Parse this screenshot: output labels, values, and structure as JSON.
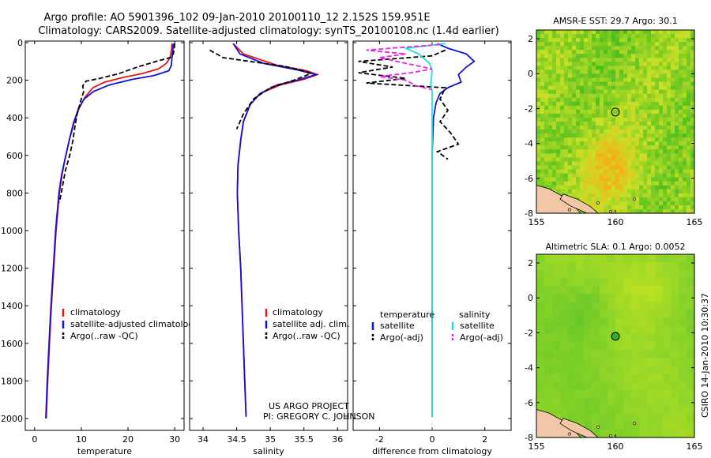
{
  "header": {
    "line1": "Argo profile: AO 5901396_102 09-Jan-2010 20100110_12 2.152S 159.951E",
    "line2": "Climatology: CARS2009. Satellite-adjusted climatology: synTS_20100108.nc (1.4d earlier)"
  },
  "colors": {
    "climatology": "#ee1111",
    "satellite": "#1111dd",
    "argo": "#000000",
    "salinity_satellite": "#22dddd",
    "salinity_argo": "#ee22ee"
  },
  "depth_axis": {
    "min": 0,
    "max": 2050,
    "ticks": [
      0,
      200,
      400,
      600,
      800,
      1000,
      1200,
      1400,
      1600,
      1800,
      2000
    ]
  },
  "chart_data": [
    {
      "id": "temperature",
      "type": "line",
      "xlabel": "temperature",
      "xlim": [
        -2,
        32
      ],
      "xticks": [
        0,
        10,
        20,
        30
      ],
      "legend": [
        "climatology",
        "satellite-adjusted climatology",
        "Argo(..raw -QC)"
      ],
      "series": [
        {
          "name": "climatology",
          "color_key": "climatology",
          "dash": false,
          "points": [
            [
              29.4,
              5
            ],
            [
              29.3,
              40
            ],
            [
              29.0,
              80
            ],
            [
              28.2,
              110
            ],
            [
              26.5,
              140
            ],
            [
              23,
              165
            ],
            [
              19,
              185
            ],
            [
              15,
              210
            ],
            [
              12.5,
              240
            ],
            [
              10.8,
              290
            ],
            [
              9.5,
              350
            ],
            [
              8.4,
              430
            ],
            [
              7.4,
              520
            ],
            [
              6.5,
              620
            ],
            [
              5.9,
              700
            ],
            [
              5.3,
              800
            ],
            [
              4.6,
              1000
            ],
            [
              4.1,
              1200
            ],
            [
              3.6,
              1400
            ],
            [
              3.2,
              1600
            ],
            [
              2.8,
              1800
            ],
            [
              2.5,
              2000
            ]
          ]
        },
        {
          "name": "satellite-adjusted climatology",
          "color_key": "satellite",
          "dash": false,
          "points": [
            [
              29.7,
              5
            ],
            [
              29.6,
              40
            ],
            [
              29.4,
              80
            ],
            [
              29.3,
              120
            ],
            [
              28.7,
              150
            ],
            [
              25.5,
              175
            ],
            [
              21,
              195
            ],
            [
              16,
              225
            ],
            [
              12.6,
              260
            ],
            [
              10.6,
              300
            ],
            [
              9.4,
              350
            ],
            [
              8.3,
              430
            ],
            [
              7.4,
              520
            ],
            [
              6.5,
              620
            ],
            [
              5.8,
              700
            ],
            [
              5.2,
              800
            ],
            [
              4.5,
              1000
            ],
            [
              4.0,
              1200
            ],
            [
              3.5,
              1400
            ],
            [
              3.1,
              1600
            ],
            [
              2.7,
              1800
            ],
            [
              2.4,
              2000
            ]
          ]
        },
        {
          "name": "Argo(..raw -QC)",
          "color_key": "argo",
          "dash": true,
          "points": [
            [
              30.0,
              5
            ],
            [
              29.9,
              30
            ],
            [
              29.7,
              60
            ],
            [
              29.0,
              80
            ],
            [
              26,
              100
            ],
            [
              22,
              130
            ],
            [
              18,
              165
            ],
            [
              14,
              190
            ],
            [
              11,
              205
            ],
            [
              10.3,
              230
            ],
            [
              10.5,
              260
            ],
            [
              10,
              300
            ],
            [
              9.1,
              380
            ],
            [
              8.6,
              450
            ],
            [
              8.2,
              520
            ],
            [
              7.5,
              600
            ],
            [
              6.6,
              680
            ],
            [
              6.0,
              760
            ],
            [
              5.3,
              850
            ]
          ]
        }
      ]
    },
    {
      "id": "salinity",
      "type": "line",
      "xlabel": "salinity",
      "xlim": [
        33.8,
        36.15
      ],
      "xticks": [
        34,
        34.5,
        35,
        35.5,
        36
      ],
      "legend": [
        "climatology",
        "satellite adj. clim.",
        "Argo(..raw -QC)"
      ],
      "series": [
        {
          "name": "climatology",
          "color_key": "climatology",
          "dash": false,
          "points": [
            [
              34.45,
              5
            ],
            [
              34.6,
              60
            ],
            [
              35.1,
              120
            ],
            [
              35.55,
              150
            ],
            [
              35.7,
              170
            ],
            [
              35.5,
              195
            ],
            [
              35.15,
              225
            ],
            [
              34.85,
              270
            ],
            [
              34.7,
              330
            ],
            [
              34.6,
              420
            ],
            [
              34.56,
              520
            ],
            [
              34.52,
              650
            ],
            [
              34.51,
              800
            ],
            [
              34.53,
              1000
            ],
            [
              34.56,
              1200
            ],
            [
              34.58,
              1400
            ],
            [
              34.6,
              1600
            ],
            [
              34.62,
              1800
            ],
            [
              34.64,
              1990
            ]
          ]
        },
        {
          "name": "satellite adj. clim.",
          "color_key": "satellite",
          "dash": false,
          "points": [
            [
              34.45,
              5
            ],
            [
              34.55,
              60
            ],
            [
              34.9,
              110
            ],
            [
              35.4,
              145
            ],
            [
              35.68,
              170
            ],
            [
              35.45,
              195
            ],
            [
              35.1,
              225
            ],
            [
              34.85,
              270
            ],
            [
              34.7,
              330
            ],
            [
              34.6,
              420
            ],
            [
              34.56,
              520
            ],
            [
              34.52,
              650
            ],
            [
              34.51,
              800
            ],
            [
              34.53,
              1000
            ],
            [
              34.56,
              1200
            ],
            [
              34.58,
              1400
            ],
            [
              34.6,
              1600
            ],
            [
              34.62,
              1800
            ],
            [
              34.64,
              1990
            ]
          ]
        },
        {
          "name": "Argo(..raw -QC)",
          "color_key": "argo",
          "dash": true,
          "points": [
            [
              34.1,
              40
            ],
            [
              34.3,
              80
            ],
            [
              34.8,
              105
            ],
            [
              35.2,
              125
            ],
            [
              35.5,
              150
            ],
            [
              35.6,
              165
            ],
            [
              35.35,
              200
            ],
            [
              35.0,
              240
            ],
            [
              34.75,
              300
            ],
            [
              34.6,
              380
            ],
            [
              34.5,
              460
            ]
          ]
        }
      ]
    },
    {
      "id": "difference",
      "type": "line",
      "xlabel": "difference from climatology",
      "xlim": [
        -3,
        3
      ],
      "xticks": [
        -2,
        0,
        2
      ],
      "legend_temperature": {
        "title": "temperature",
        "items": [
          "satellite",
          "Argo(-adj)"
        ]
      },
      "legend_salinity": {
        "title": "salinity",
        "items": [
          "satellite",
          "Argo(-adj)"
        ]
      },
      "series": [
        {
          "name": "temperature satellite",
          "color_key": "satellite",
          "dash": false,
          "points": [
            [
              0.2,
              5
            ],
            [
              0.6,
              30
            ],
            [
              1.3,
              60
            ],
            [
              1.6,
              100
            ],
            [
              1.3,
              130
            ],
            [
              1.0,
              170
            ],
            [
              1.1,
              210
            ],
            [
              0.6,
              240
            ],
            [
              0.3,
              270
            ],
            [
              0.15,
              320
            ],
            [
              0.05,
              400
            ],
            [
              0.0,
              600
            ],
            [
              0.0,
              1000
            ],
            [
              0.0,
              1500
            ],
            [
              0.0,
              1990
            ]
          ]
        },
        {
          "name": "temperature Argo(-adj)",
          "color_key": "argo",
          "dash": true,
          "points": [
            [
              0.5,
              40
            ],
            [
              0,
              70
            ],
            [
              -2.8,
              100
            ],
            [
              -1.5,
              130
            ],
            [
              -2.8,
              160
            ],
            [
              -1.0,
              190
            ],
            [
              -2.5,
              215
            ],
            [
              0.5,
              240
            ],
            [
              0.3,
              300
            ],
            [
              0.6,
              360
            ],
            [
              0.3,
              420
            ],
            [
              0.7,
              480
            ],
            [
              1.0,
              540
            ],
            [
              0.2,
              580
            ],
            [
              0.6,
              620
            ]
          ]
        },
        {
          "name": "salinity satellite",
          "color_key": "salinity_satellite",
          "dash": false,
          "points": [
            [
              0.5,
              5
            ],
            [
              -1.0,
              30
            ],
            [
              -0.5,
              60
            ],
            [
              -0.1,
              110
            ],
            [
              0,
              150
            ],
            [
              -0.05,
              220
            ],
            [
              0,
              260
            ],
            [
              0,
              400
            ],
            [
              0,
              1000
            ],
            [
              0,
              1500
            ],
            [
              0,
              1990
            ]
          ]
        },
        {
          "name": "salinity Argo(-adj)",
          "color_key": "salinity_argo",
          "dash": true,
          "points": [
            [
              0.3,
              10
            ],
            [
              -2.5,
              40
            ],
            [
              -1.0,
              60
            ],
            [
              -2.0,
              80
            ],
            [
              -1.0,
              110
            ],
            [
              0.0,
              140
            ],
            [
              -0.8,
              160
            ],
            [
              -2.0,
              180
            ],
            [
              -1.0,
              200
            ],
            [
              -0.6,
              230
            ],
            [
              0.0,
              250
            ]
          ]
        }
      ]
    }
  ],
  "maps": [
    {
      "id": "sst",
      "title": "AMSR-E SST: 29.7 Argo: 30.1",
      "xticks": [
        155,
        160,
        165
      ],
      "yticks": [
        2,
        0,
        -2,
        -4,
        -6,
        -8
      ],
      "xlim": [
        155,
        165
      ],
      "ylim": [
        -8,
        2.5
      ],
      "marker": [
        160,
        -2.2
      ]
    },
    {
      "id": "sla",
      "title": "Altimetric SLA: 0.1 Argo: 0.0052",
      "xticks": [
        155,
        160,
        165
      ],
      "yticks": [
        2,
        0,
        -2,
        -4,
        -6,
        -8
      ],
      "xlim": [
        155,
        165
      ],
      "ylim": [
        -8,
        2.5
      ],
      "marker": [
        160,
        -2.2
      ]
    }
  ],
  "credits": {
    "project": "US ARGO PROJECT",
    "pi": "PI: GREGORY C. JOHNSON",
    "stamp": "CSIRO 14-Jan-2010 10:30:37"
  }
}
